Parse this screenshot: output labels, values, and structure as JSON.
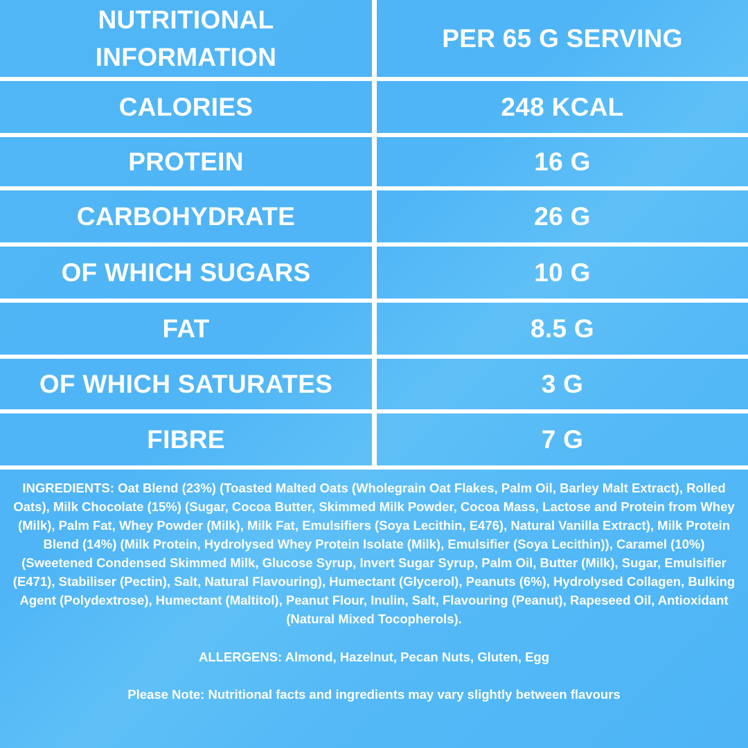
{
  "table": {
    "header": {
      "left_line1": "NUTRITIONAL",
      "left_line2": "INFORMATION",
      "right": "PER 65 G SERVING"
    },
    "rows": [
      {
        "label": "CALORIES",
        "value": "248 KCAL"
      },
      {
        "label": "PROTEIN",
        "value": "16 G"
      },
      {
        "label": "CARBOHYDRATE",
        "value": "26 G"
      },
      {
        "label": "OF WHICH SUGARS",
        "value": "10 G"
      },
      {
        "label": "FAT",
        "value": "8.5 G"
      },
      {
        "label": "OF WHICH SATURATES",
        "value": "3 G"
      },
      {
        "label": "FIBRE",
        "value": "7 G"
      }
    ]
  },
  "ingredients": "INGREDIENTS: Oat Blend (23%) (Toasted Malted Oats (Wholegrain Oat Flakes, Palm Oil, Barley Malt Extract), Rolled Oats), Milk Chocolate (15%) (Sugar, Cocoa Butter, Skimmed Milk Powder, Cocoa Mass, Lactose and Protein from Whey (Milk), Palm Fat, Whey Powder (Milk), Milk Fat, Emulsifiers (Soya Lecithin, E476), Natural Vanilla Extract), Milk Protein Blend (14%) (Milk Protein, Hydrolysed Whey Protein Isolate (Milk), Emulsifier (Soya Lecithin)), Caramel (10%) (Sweetened Condensed Skimmed Milk, Glucose Syrup, Invert Sugar Syrup, Palm Oil, Butter (Milk), Sugar, Emulsifier (E471), Stabiliser (Pectin), Salt, Natural Flavouring), Humectant (Glycerol), Peanuts (6%), Hydrolysed Collagen, Bulking Agent (Polydextrose), Humectant (Maltitol), Peanut Flour, Inulin, Salt, Flavouring (Peanut), Rapeseed Oil, Antioxidant (Natural Mixed Tocopherols).",
  "allergens": "ALLERGENS: Almond, Hazelnut, Pecan Nuts, Gluten, Egg",
  "note": "Please Note: Nutritional facts and ingredients may vary slightly between flavours",
  "colors": {
    "background": "#50b6f5",
    "text": "#ffffff",
    "grid_lines": "#ffffff"
  }
}
